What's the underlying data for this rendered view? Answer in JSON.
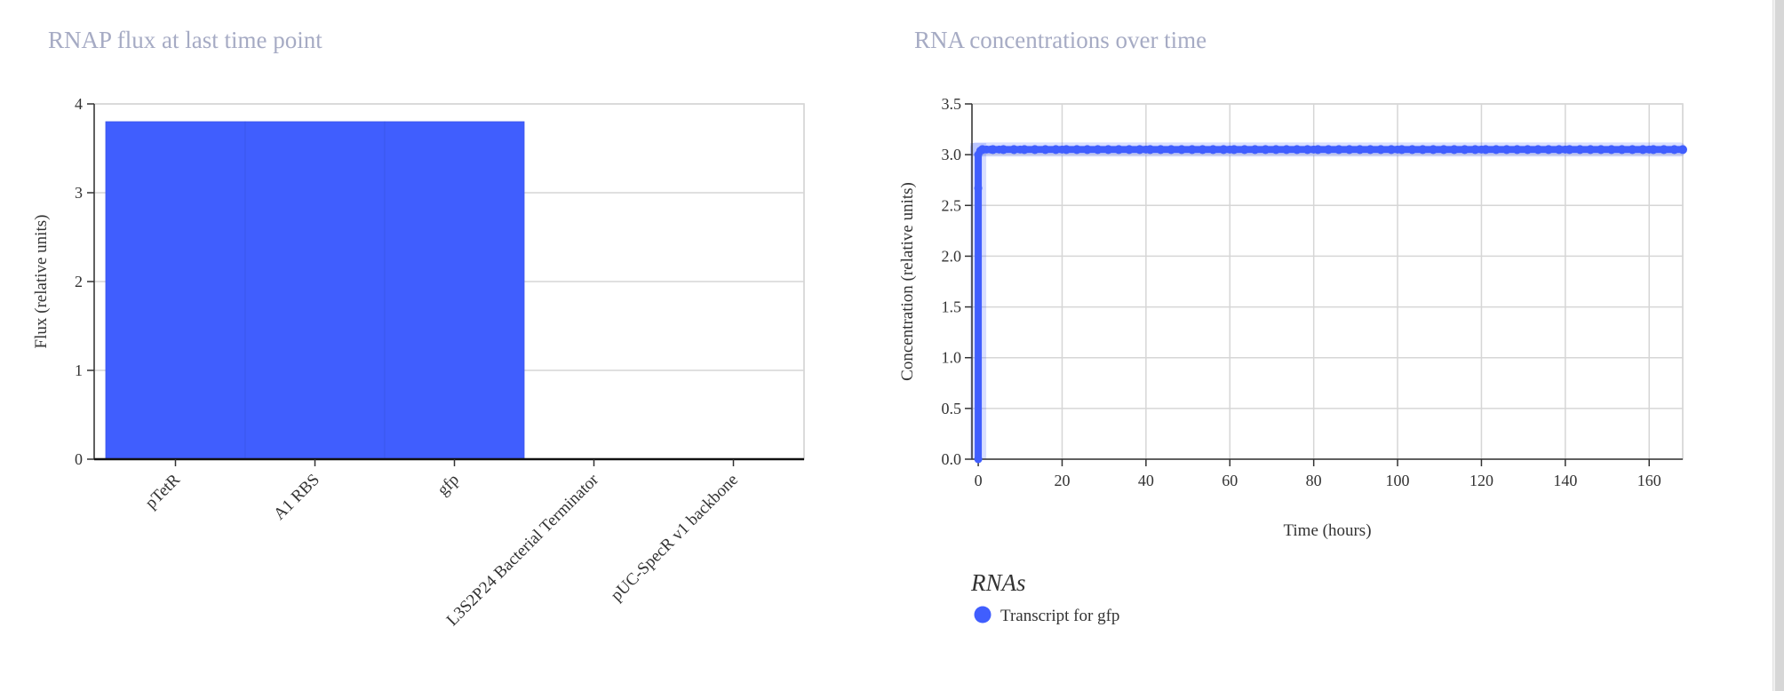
{
  "chart_data": [
    {
      "type": "bar",
      "title": "RNAP flux at last time point",
      "ylabel": "Flux (relative units)",
      "xlabel": "",
      "categories": [
        "pTetR",
        "A1 RBS",
        "gfp",
        "L3S2P24 Bacterial Terminator",
        "pUC-SpecR v1 backbone"
      ],
      "values": [
        3.8,
        3.8,
        3.8,
        0,
        0
      ],
      "ylim": [
        0,
        4
      ],
      "yticks": [
        0,
        1,
        2,
        3,
        4
      ],
      "grid": true,
      "bar_color": "#405efe"
    },
    {
      "type": "line",
      "title": "RNA concentrations over time",
      "xlabel": "Time (hours)",
      "ylabel": "Concentration (relative units)",
      "xlim": [
        -1.5,
        168
      ],
      "ylim": [
        0,
        3.5
      ],
      "xticks": [
        0,
        20,
        40,
        60,
        80,
        100,
        120,
        140,
        160
      ],
      "yticks": [
        "0.0",
        "0.5",
        "1.0",
        "1.5",
        "2.0",
        "2.5",
        "3.0",
        "3.5"
      ],
      "grid": true,
      "legend_title": "RNAs",
      "legend_position": "bottom-left",
      "series": [
        {
          "name": "Transcript for gfp",
          "color": "#405efe",
          "x": [
            0,
            0,
            0,
            0.5,
            1,
            2,
            3,
            5,
            10,
            20,
            40,
            60,
            80,
            100,
            120,
            140,
            160,
            168
          ],
          "y": [
            0,
            2.67,
            3.0,
            3.04,
            3.05,
            3.05,
            3.05,
            3.05,
            3.05,
            3.05,
            3.05,
            3.05,
            3.05,
            3.05,
            3.05,
            3.05,
            3.05,
            3.05
          ]
        }
      ]
    }
  ]
}
